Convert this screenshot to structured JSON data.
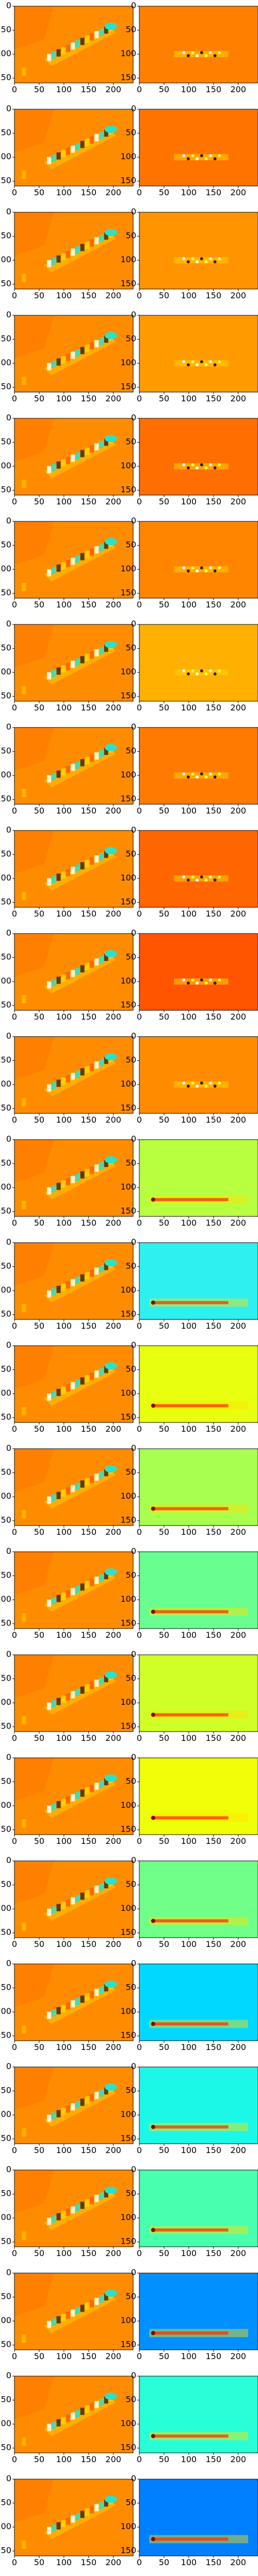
{
  "chart_data": {
    "type": "heatmap",
    "grid": false,
    "legend": "none",
    "rows": 25,
    "xlim": [
      0,
      240
    ],
    "ylim": [
      160,
      0
    ],
    "xticks": [
      "0",
      "50",
      "100",
      "150",
      "200"
    ],
    "yticks": [
      "0",
      "50",
      "100",
      "150"
    ],
    "tick_values_x": [
      0,
      50,
      100,
      150,
      200
    ],
    "tick_values_y": [
      0,
      50,
      100,
      150
    ],
    "left_panel": {
      "description_color": "#ff8a00",
      "background": "#ff8c00",
      "feature_colors": [
        "#ffffff",
        "#2de0c8",
        "#3a2a1a",
        "#ffd400",
        "#ff5a00"
      ]
    },
    "right_panels": [
      {
        "background": "#ff8000",
        "band": "mid"
      },
      {
        "background": "#ff7400",
        "band": "mid"
      },
      {
        "background": "#ff9400",
        "band": "mid"
      },
      {
        "background": "#ff9a00",
        "band": "mid"
      },
      {
        "background": "#ff6e00",
        "band": "mid"
      },
      {
        "background": "#ff8400",
        "band": "mid"
      },
      {
        "background": "#ffb000",
        "band": "mid"
      },
      {
        "background": "#ff7a00",
        "band": "mid"
      },
      {
        "background": "#ff6600",
        "band": "mid"
      },
      {
        "background": "#ff5400",
        "band": "mid"
      },
      {
        "background": "#ff8c00",
        "band": "mid"
      },
      {
        "background": "#b8ff40",
        "band": "low"
      },
      {
        "background": "#2ef0f0",
        "band": "low"
      },
      {
        "background": "#e8ff10",
        "band": "low"
      },
      {
        "background": "#a8ff50",
        "band": "low"
      },
      {
        "background": "#68ff90",
        "band": "low"
      },
      {
        "background": "#d0ff28",
        "band": "low"
      },
      {
        "background": "#f0ff08",
        "band": "low"
      },
      {
        "background": "#70ff88",
        "band": "low"
      },
      {
        "background": "#00d8ff",
        "band": "low"
      },
      {
        "background": "#1cf8e8",
        "band": "low"
      },
      {
        "background": "#48ffb0",
        "band": "low"
      },
      {
        "background": "#0090ff",
        "band": "low"
      },
      {
        "background": "#28ffd8",
        "band": "low"
      },
      {
        "background": "#0080ff",
        "band": "low"
      }
    ]
  }
}
